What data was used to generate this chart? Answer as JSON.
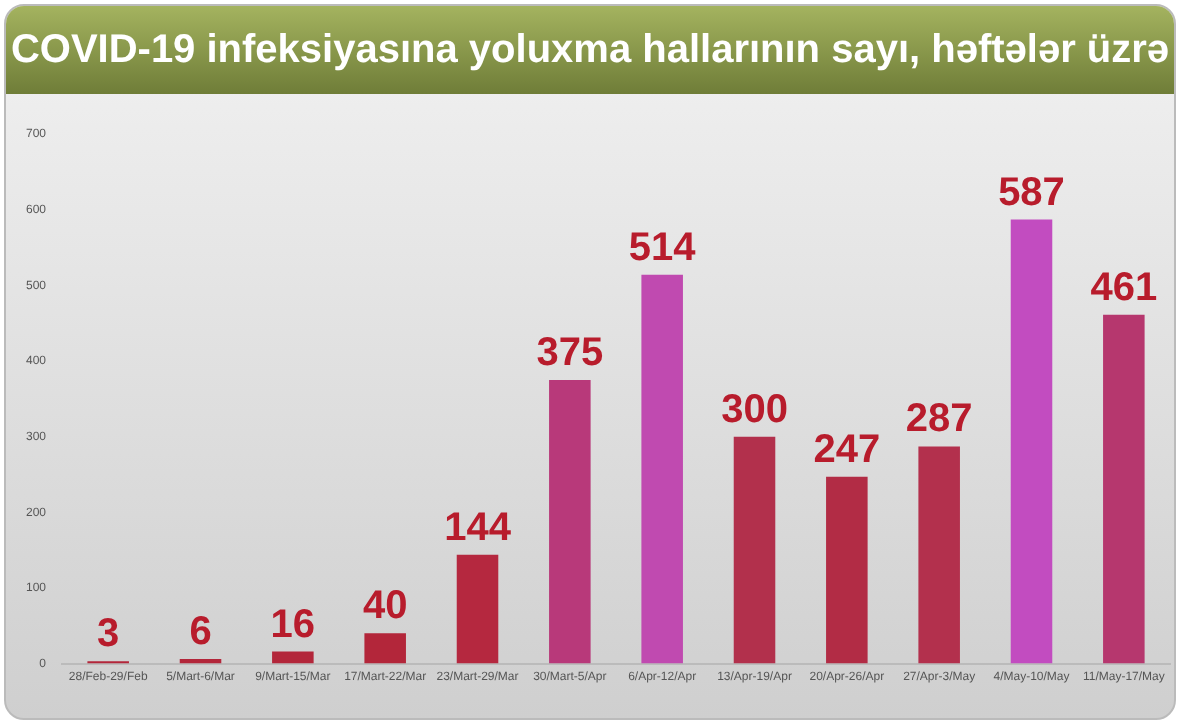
{
  "chart_data": {
    "type": "bar",
    "title": "COVID-19 infeksiyasına yoluxma hallarının sayı, həftələr üzrə",
    "categories": [
      "28/Feb-29/Feb",
      "5/Mart-6/Mar",
      "9/Mart-15/Mar",
      "17/Mart-22/Mar",
      "23/Mart-29/Mar",
      "30/Mart-5/Apr",
      "6/Apr-12/Apr",
      "13/Apr-19/Apr",
      "20/Apr-26/Apr",
      "27/Apr-3/May",
      "4/May-10/May",
      "11/May-17/May"
    ],
    "values": [
      3,
      6,
      16,
      40,
      144,
      375,
      514,
      300,
      247,
      287,
      587,
      461
    ],
    "colors": [
      "#b3263a",
      "#b3263a",
      "#b3263a",
      "#b3263a",
      "#b5283f",
      "#b8397a",
      "#c04ab0",
      "#b2304c",
      "#b22c45",
      "#b3304d",
      "#c24cc0",
      "#b6376e"
    ],
    "ylim": [
      0,
      700
    ],
    "yticks": [
      0,
      100,
      200,
      300,
      400,
      500,
      600,
      700
    ],
    "grid": false,
    "data_labels": true
  }
}
